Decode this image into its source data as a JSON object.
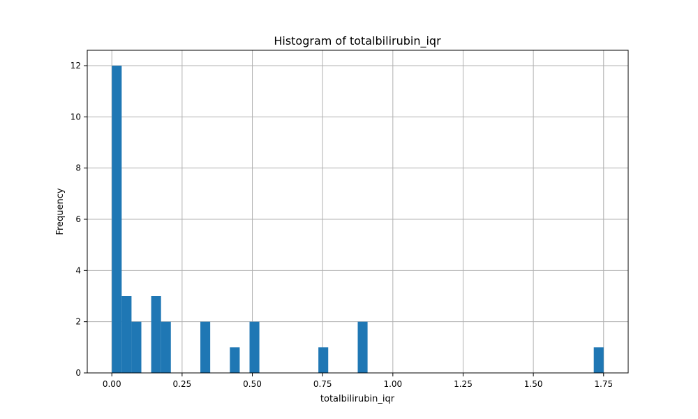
{
  "chart_data": {
    "type": "bar",
    "title": "Histogram of totalbilirubin_iqr",
    "xlabel": "totalbilirubin_iqr",
    "ylabel": "Frequency",
    "xlim": [
      -0.0875,
      1.8375
    ],
    "ylim": [
      0,
      12.6
    ],
    "grid": true,
    "xticks": [
      0.0,
      0.25,
      0.5,
      0.75,
      1.0,
      1.25,
      1.5,
      1.75
    ],
    "xtick_labels": [
      "0.00",
      "0.25",
      "0.50",
      "0.75",
      "1.00",
      "1.25",
      "1.50",
      "1.75"
    ],
    "yticks": [
      0,
      2,
      4,
      6,
      8,
      10,
      12
    ],
    "ytick_labels": [
      "0",
      "2",
      "4",
      "6",
      "8",
      "10",
      "12"
    ],
    "bin_width": 0.035,
    "bins": [
      {
        "x0": 0.0,
        "x1": 0.035,
        "count": 12
      },
      {
        "x0": 0.035,
        "x1": 0.07,
        "count": 3
      },
      {
        "x0": 0.07,
        "x1": 0.105,
        "count": 2
      },
      {
        "x0": 0.14,
        "x1": 0.175,
        "count": 3
      },
      {
        "x0": 0.175,
        "x1": 0.21,
        "count": 2
      },
      {
        "x0": 0.315,
        "x1": 0.35,
        "count": 2
      },
      {
        "x0": 0.42,
        "x1": 0.455,
        "count": 1
      },
      {
        "x0": 0.49,
        "x1": 0.525,
        "count": 2
      },
      {
        "x0": 0.735,
        "x1": 0.77,
        "count": 1
      },
      {
        "x0": 0.875,
        "x1": 0.91,
        "count": 2
      },
      {
        "x0": 1.715,
        "x1": 1.75,
        "count": 1
      }
    ],
    "colors": {
      "bar": "#1f77b4",
      "grid": "#b0b0b0"
    }
  }
}
